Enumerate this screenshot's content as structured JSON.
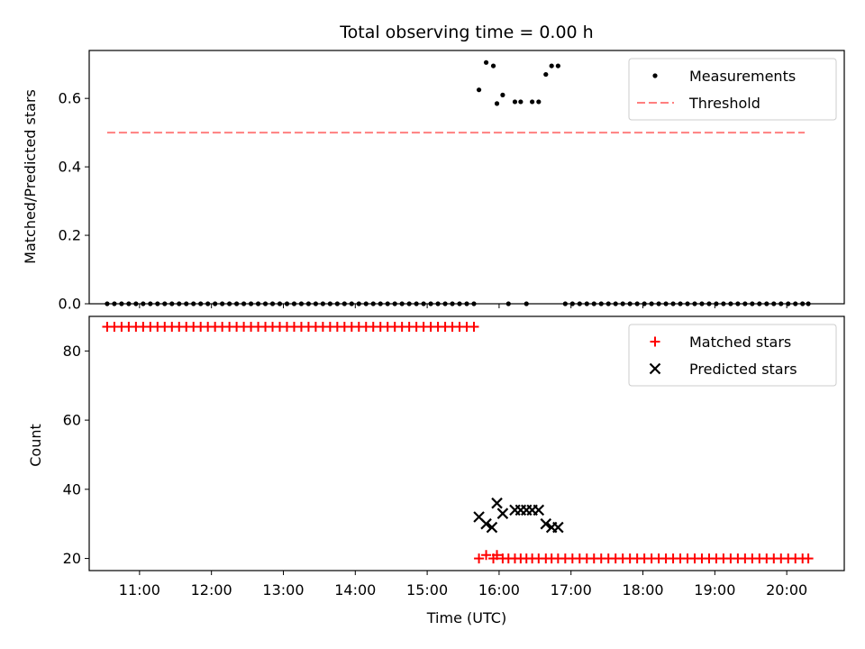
{
  "chart_data": [
    {
      "type": "scatter",
      "title": "Total observing time = 0.00 h",
      "xlabel": "",
      "ylabel": "Matched/Predicted stars",
      "x_unit": "hours UTC",
      "xlim": [
        10.3,
        20.8
      ],
      "ylim": [
        0.0,
        0.74
      ],
      "yticks": [
        0.0,
        0.2,
        0.4,
        0.6
      ],
      "ytick_labels": [
        "0.0",
        "0.2",
        "0.4",
        "0.6"
      ],
      "grid": false,
      "legend_position": "top-right",
      "legend": [
        "Measurements",
        "Threshold"
      ],
      "series": [
        {
          "name": "Measurements",
          "marker": "dot",
          "color": "#000000",
          "points": [
            [
              10.55,
              0
            ],
            [
              10.65,
              0
            ],
            [
              10.75,
              0
            ],
            [
              10.85,
              0
            ],
            [
              10.95,
              0
            ],
            [
              11.05,
              0
            ],
            [
              11.15,
              0
            ],
            [
              11.25,
              0
            ],
            [
              11.35,
              0
            ],
            [
              11.45,
              0
            ],
            [
              11.55,
              0
            ],
            [
              11.65,
              0
            ],
            [
              11.75,
              0
            ],
            [
              11.85,
              0
            ],
            [
              11.95,
              0
            ],
            [
              12.05,
              0
            ],
            [
              12.15,
              0
            ],
            [
              12.25,
              0
            ],
            [
              12.35,
              0
            ],
            [
              12.45,
              0
            ],
            [
              12.55,
              0
            ],
            [
              12.65,
              0
            ],
            [
              12.75,
              0
            ],
            [
              12.85,
              0
            ],
            [
              12.95,
              0
            ],
            [
              13.05,
              0
            ],
            [
              13.15,
              0
            ],
            [
              13.25,
              0
            ],
            [
              13.35,
              0
            ],
            [
              13.45,
              0
            ],
            [
              13.55,
              0
            ],
            [
              13.65,
              0
            ],
            [
              13.75,
              0
            ],
            [
              13.85,
              0
            ],
            [
              13.95,
              0
            ],
            [
              14.05,
              0
            ],
            [
              14.15,
              0
            ],
            [
              14.25,
              0
            ],
            [
              14.35,
              0
            ],
            [
              14.45,
              0
            ],
            [
              14.55,
              0
            ],
            [
              14.65,
              0
            ],
            [
              14.75,
              0
            ],
            [
              14.85,
              0
            ],
            [
              14.95,
              0
            ],
            [
              15.05,
              0
            ],
            [
              15.15,
              0
            ],
            [
              15.25,
              0
            ],
            [
              15.35,
              0
            ],
            [
              15.45,
              0
            ],
            [
              15.55,
              0
            ],
            [
              15.65,
              0
            ],
            [
              15.72,
              0.625
            ],
            [
              15.82,
              0.705
            ],
            [
              15.92,
              0.695
            ],
            [
              15.97,
              0.585
            ],
            [
              16.05,
              0.61
            ],
            [
              16.13,
              0
            ],
            [
              16.22,
              0.59
            ],
            [
              16.3,
              0.59
            ],
            [
              16.38,
              0
            ],
            [
              16.46,
              0.59
            ],
            [
              16.55,
              0.59
            ],
            [
              16.65,
              0.67
            ],
            [
              16.73,
              0.695
            ],
            [
              16.82,
              0.695
            ],
            [
              16.92,
              0
            ],
            [
              17.02,
              0
            ],
            [
              17.12,
              0
            ],
            [
              17.22,
              0
            ],
            [
              17.32,
              0
            ],
            [
              17.42,
              0
            ],
            [
              17.52,
              0
            ],
            [
              17.62,
              0
            ],
            [
              17.72,
              0
            ],
            [
              17.82,
              0
            ],
            [
              17.92,
              0
            ],
            [
              18.02,
              0
            ],
            [
              18.12,
              0
            ],
            [
              18.22,
              0
            ],
            [
              18.32,
              0
            ],
            [
              18.42,
              0
            ],
            [
              18.52,
              0
            ],
            [
              18.62,
              0
            ],
            [
              18.72,
              0
            ],
            [
              18.82,
              0
            ],
            [
              18.92,
              0
            ],
            [
              19.02,
              0
            ],
            [
              19.12,
              0
            ],
            [
              19.22,
              0
            ],
            [
              19.32,
              0
            ],
            [
              19.42,
              0
            ],
            [
              19.52,
              0
            ],
            [
              19.62,
              0
            ],
            [
              19.72,
              0
            ],
            [
              19.82,
              0
            ],
            [
              19.92,
              0
            ],
            [
              20.02,
              0
            ],
            [
              20.12,
              0
            ],
            [
              20.22,
              0
            ],
            [
              20.3,
              0
            ]
          ]
        },
        {
          "name": "Threshold",
          "marker": "dashed-line",
          "color": "#ff7f7f",
          "points": [
            [
              10.55,
              0.5
            ],
            [
              20.25,
              0.5
            ]
          ]
        }
      ]
    },
    {
      "type": "scatter",
      "title": "",
      "xlabel": "Time (UTC)",
      "ylabel": "Count",
      "x_unit": "hours UTC",
      "xlim": [
        10.3,
        20.8
      ],
      "ylim": [
        16.5,
        90.0
      ],
      "yticks": [
        20,
        40,
        60,
        80
      ],
      "ytick_labels": [
        "20",
        "40",
        "60",
        "80"
      ],
      "xticks": [
        11,
        12,
        13,
        14,
        15,
        16,
        17,
        18,
        19,
        20
      ],
      "xtick_labels": [
        "11:00",
        "12:00",
        "13:00",
        "14:00",
        "15:00",
        "16:00",
        "17:00",
        "18:00",
        "19:00",
        "20:00"
      ],
      "grid": false,
      "legend_position": "top-right",
      "legend": [
        "Matched stars",
        "Predicted stars"
      ],
      "series": [
        {
          "name": "Matched stars",
          "marker": "plus",
          "color": "#ff0000",
          "points": [
            [
              10.55,
              87
            ],
            [
              10.65,
              87
            ],
            [
              10.75,
              87
            ],
            [
              10.85,
              87
            ],
            [
              10.95,
              87
            ],
            [
              11.05,
              87
            ],
            [
              11.15,
              87
            ],
            [
              11.25,
              87
            ],
            [
              11.35,
              87
            ],
            [
              11.45,
              87
            ],
            [
              11.55,
              87
            ],
            [
              11.65,
              87
            ],
            [
              11.75,
              87
            ],
            [
              11.85,
              87
            ],
            [
              11.95,
              87
            ],
            [
              12.05,
              87
            ],
            [
              12.15,
              87
            ],
            [
              12.25,
              87
            ],
            [
              12.35,
              87
            ],
            [
              12.45,
              87
            ],
            [
              12.55,
              87
            ],
            [
              12.65,
              87
            ],
            [
              12.75,
              87
            ],
            [
              12.85,
              87
            ],
            [
              12.95,
              87
            ],
            [
              13.05,
              87
            ],
            [
              13.15,
              87
            ],
            [
              13.25,
              87
            ],
            [
              13.35,
              87
            ],
            [
              13.45,
              87
            ],
            [
              13.55,
              87
            ],
            [
              13.65,
              87
            ],
            [
              13.75,
              87
            ],
            [
              13.85,
              87
            ],
            [
              13.95,
              87
            ],
            [
              14.05,
              87
            ],
            [
              14.15,
              87
            ],
            [
              14.25,
              87
            ],
            [
              14.35,
              87
            ],
            [
              14.45,
              87
            ],
            [
              14.55,
              87
            ],
            [
              14.65,
              87
            ],
            [
              14.75,
              87
            ],
            [
              14.85,
              87
            ],
            [
              14.95,
              87
            ],
            [
              15.05,
              87
            ],
            [
              15.15,
              87
            ],
            [
              15.25,
              87
            ],
            [
              15.35,
              87
            ],
            [
              15.45,
              87
            ],
            [
              15.55,
              87
            ],
            [
              15.65,
              87
            ],
            [
              15.72,
              20
            ],
            [
              15.82,
              21
            ],
            [
              15.92,
              20
            ],
            [
              15.97,
              21
            ],
            [
              16.05,
              20
            ],
            [
              16.13,
              20
            ],
            [
              16.22,
              20
            ],
            [
              16.3,
              20
            ],
            [
              16.38,
              20
            ],
            [
              16.46,
              20
            ],
            [
              16.55,
              20
            ],
            [
              16.65,
              20
            ],
            [
              16.73,
              20
            ],
            [
              16.82,
              20
            ],
            [
              16.92,
              20
            ],
            [
              17.02,
              20
            ],
            [
              17.12,
              20
            ],
            [
              17.22,
              20
            ],
            [
              17.32,
              20
            ],
            [
              17.42,
              20
            ],
            [
              17.52,
              20
            ],
            [
              17.62,
              20
            ],
            [
              17.72,
              20
            ],
            [
              17.82,
              20
            ],
            [
              17.92,
              20
            ],
            [
              18.02,
              20
            ],
            [
              18.12,
              20
            ],
            [
              18.22,
              20
            ],
            [
              18.32,
              20
            ],
            [
              18.42,
              20
            ],
            [
              18.52,
              20
            ],
            [
              18.62,
              20
            ],
            [
              18.72,
              20
            ],
            [
              18.82,
              20
            ],
            [
              18.92,
              20
            ],
            [
              19.02,
              20
            ],
            [
              19.12,
              20
            ],
            [
              19.22,
              20
            ],
            [
              19.32,
              20
            ],
            [
              19.42,
              20
            ],
            [
              19.52,
              20
            ],
            [
              19.62,
              20
            ],
            [
              19.72,
              20
            ],
            [
              19.82,
              20
            ],
            [
              19.92,
              20
            ],
            [
              20.02,
              20
            ],
            [
              20.12,
              20
            ],
            [
              20.22,
              20
            ],
            [
              20.3,
              20
            ]
          ]
        },
        {
          "name": "Predicted stars",
          "marker": "x",
          "color": "#000000",
          "points": [
            [
              15.72,
              32
            ],
            [
              15.82,
              30
            ],
            [
              15.9,
              29
            ],
            [
              15.97,
              36
            ],
            [
              16.05,
              33
            ],
            [
              16.22,
              34
            ],
            [
              16.3,
              34
            ],
            [
              16.38,
              34
            ],
            [
              16.46,
              34
            ],
            [
              16.55,
              34
            ],
            [
              16.65,
              30
            ],
            [
              16.73,
              29
            ],
            [
              16.82,
              29
            ]
          ]
        }
      ]
    }
  ]
}
